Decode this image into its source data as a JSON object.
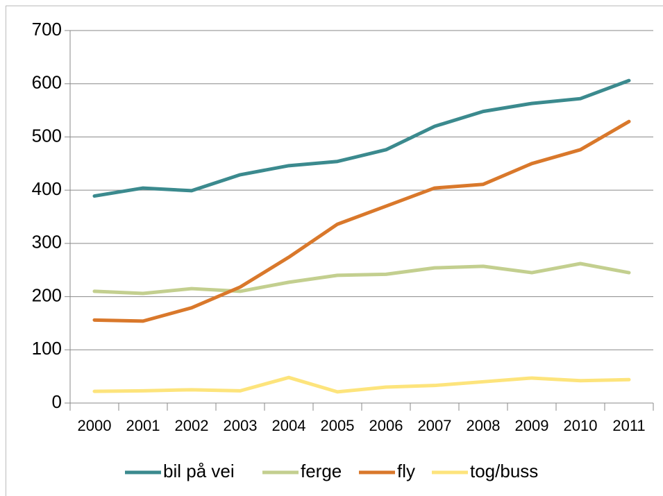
{
  "chart_data": {
    "type": "line",
    "categories": [
      "2000",
      "2001",
      "2002",
      "2003",
      "2004",
      "2005",
      "2006",
      "2007",
      "2008",
      "2009",
      "2010",
      "2011"
    ],
    "series": [
      {
        "name": "bil på vei",
        "color": "#3b8a8e",
        "values": [
          389,
          404,
          399,
          429,
          446,
          454,
          476,
          520,
          548,
          563,
          572,
          606
        ]
      },
      {
        "name": "ferge",
        "color": "#c3cf8f",
        "values": [
          210,
          206,
          215,
          210,
          227,
          240,
          242,
          254,
          257,
          245,
          262,
          245
        ]
      },
      {
        "name": "fly",
        "color": "#d9782b",
        "values": [
          156,
          154,
          179,
          218,
          274,
          336,
          370,
          404,
          411,
          450,
          476,
          529
        ]
      },
      {
        "name": "tog/buss",
        "color": "#fde47c",
        "values": [
          22,
          23,
          25,
          23,
          48,
          21,
          30,
          33,
          40,
          47,
          42,
          44
        ]
      }
    ],
    "ylim": [
      0,
      700
    ],
    "yticks": [
      0,
      100,
      200,
      300,
      400,
      500,
      600,
      700
    ],
    "grid": true,
    "legend": "bottom"
  }
}
